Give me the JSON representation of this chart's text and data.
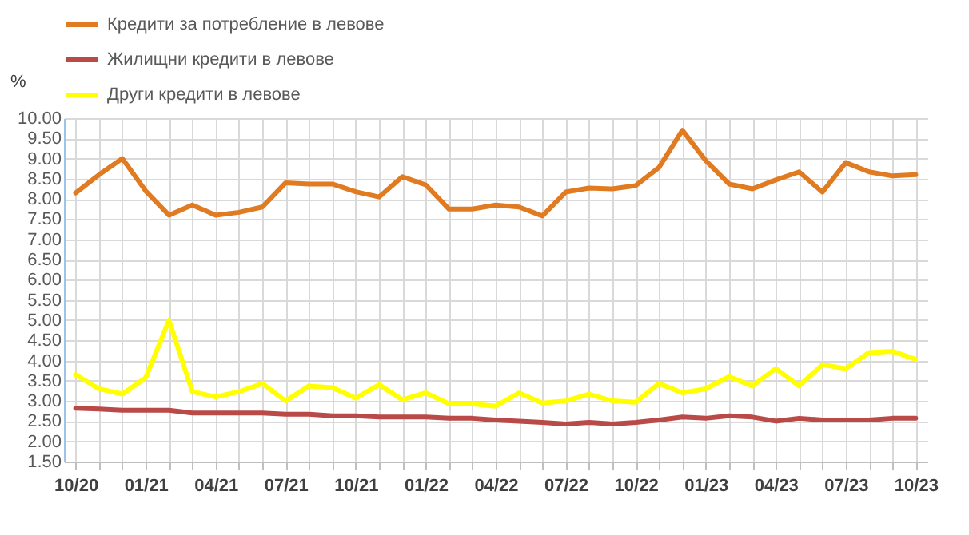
{
  "chart_data": {
    "type": "line",
    "ylabel": "%",
    "categories": [
      "10/20",
      null,
      null,
      "01/21",
      null,
      null,
      "04/21",
      null,
      null,
      "07/21",
      null,
      null,
      "10/21",
      null,
      null,
      "01/22",
      null,
      null,
      "04/22",
      null,
      null,
      "07/22",
      null,
      null,
      "10/22",
      null,
      null,
      "01/23",
      null,
      null,
      "04/23",
      null,
      null,
      "07/23",
      null,
      null,
      "10/23"
    ],
    "series": [
      {
        "name": "Кредити за потребление в левове",
        "color": "#e07b22",
        "values": [
          8.15,
          8.6,
          9.0,
          8.2,
          7.6,
          7.85,
          7.6,
          7.67,
          7.8,
          8.4,
          8.37,
          8.37,
          8.18,
          8.05,
          8.55,
          8.35,
          7.75,
          7.75,
          7.85,
          7.8,
          7.58,
          8.17,
          8.27,
          8.25,
          8.33,
          8.78,
          9.7,
          8.95,
          8.37,
          8.25,
          8.47,
          8.67,
          8.17,
          8.9,
          8.67,
          8.57,
          8.6
        ]
      },
      {
        "name": "Жилищни кредити в левове",
        "color": "#b94a48",
        "values": [
          2.82,
          2.8,
          2.77,
          2.77,
          2.77,
          2.7,
          2.7,
          2.7,
          2.7,
          2.67,
          2.67,
          2.63,
          2.63,
          2.6,
          2.6,
          2.6,
          2.57,
          2.57,
          2.53,
          2.5,
          2.47,
          2.43,
          2.47,
          2.43,
          2.47,
          2.53,
          2.6,
          2.57,
          2.63,
          2.6,
          2.5,
          2.57,
          2.53,
          2.53,
          2.53,
          2.57,
          2.57
        ]
      },
      {
        "name": "Други кредити в левове",
        "color": "#ffff00",
        "values": [
          3.65,
          3.3,
          3.17,
          3.57,
          5.0,
          3.23,
          3.1,
          3.23,
          3.43,
          3.0,
          3.37,
          3.33,
          3.07,
          3.4,
          3.03,
          3.2,
          2.93,
          2.93,
          2.87,
          3.2,
          2.95,
          3.0,
          3.17,
          3.0,
          2.97,
          3.43,
          3.2,
          3.3,
          3.6,
          3.37,
          3.8,
          3.37,
          3.9,
          3.8,
          4.2,
          4.23,
          4.03
        ]
      }
    ],
    "ylim": [
      1.5,
      10.0
    ],
    "yticks": [
      {
        "value": 1.5,
        "label": "1.50"
      },
      {
        "value": 2.0,
        "label": "2.00"
      },
      {
        "value": 2.5,
        "label": "2.50"
      },
      {
        "value": 3.0,
        "label": "3.00"
      },
      {
        "value": 3.5,
        "label": "3.50"
      },
      {
        "value": 4.0,
        "label": "4.00"
      },
      {
        "value": 4.5,
        "label": "4.50"
      },
      {
        "value": 5.0,
        "label": "5.00"
      },
      {
        "value": 5.5,
        "label": "5.50"
      },
      {
        "value": 6.0,
        "label": "6.00"
      },
      {
        "value": 6.5,
        "label": "6.50"
      },
      {
        "value": 7.0,
        "label": "7.00"
      },
      {
        "value": 7.5,
        "label": "7.50"
      },
      {
        "value": 8.0,
        "label": "8.00"
      },
      {
        "value": 8.5,
        "label": "8.50"
      },
      {
        "value": 9.0,
        "label": "9.00"
      },
      {
        "value": 9.5,
        "label": "9.50"
      },
      {
        "value": 10.0,
        "label": "10.00"
      }
    ],
    "grid": true,
    "legend": "top",
    "marker": "none",
    "line_style": "solid"
  }
}
